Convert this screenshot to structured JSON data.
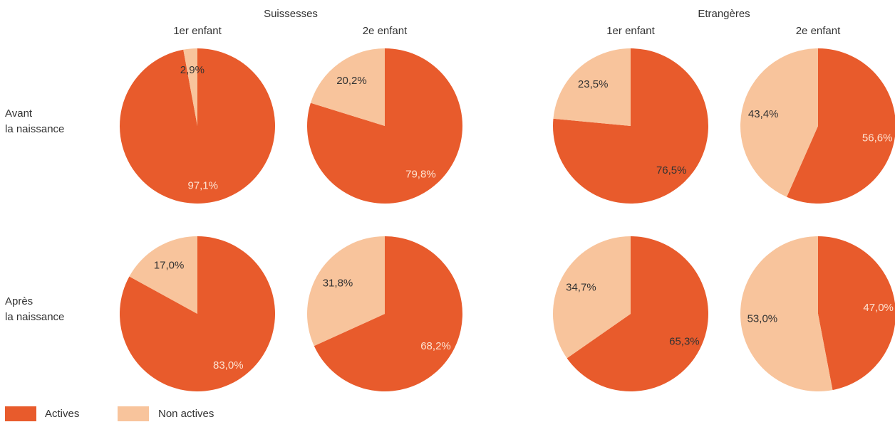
{
  "groups": [
    "Suissesses",
    "Etrangères"
  ],
  "columns": [
    "1er enfant",
    "2e enfant"
  ],
  "rows": [
    [
      "Avant",
      "la naissance"
    ],
    [
      "Après",
      "la naissance"
    ]
  ],
  "chart_data": [
    {
      "type": "pie",
      "categories": [
        "Actives",
        "Non actives"
      ],
      "colors": [
        "#e85b2c",
        "#f8c49c"
      ],
      "values": [
        97.1,
        2.9
      ],
      "value_labels": [
        "97,1%",
        "2,9%"
      ]
    },
    {
      "type": "pie",
      "categories": [
        "Actives",
        "Non actives"
      ],
      "colors": [
        "#e85b2c",
        "#f8c49c"
      ],
      "values": [
        79.8,
        20.2
      ],
      "value_labels": [
        "79,8%",
        "20,2%"
      ]
    },
    {
      "type": "pie",
      "categories": [
        "Actives",
        "Non actives"
      ],
      "colors": [
        "#e85b2c",
        "#f8c49c"
      ],
      "values": [
        76.5,
        23.5
      ],
      "value_labels": [
        "76,5%",
        "23,5%"
      ]
    },
    {
      "type": "pie",
      "categories": [
        "Actives",
        "Non actives"
      ],
      "colors": [
        "#e85b2c",
        "#f8c49c"
      ],
      "values": [
        56.6,
        43.4
      ],
      "value_labels": [
        "56,6%",
        "43,4%"
      ]
    },
    {
      "type": "pie",
      "categories": [
        "Actives",
        "Non actives"
      ],
      "colors": [
        "#e85b2c",
        "#f8c49c"
      ],
      "values": [
        83.0,
        17.0
      ],
      "value_labels": [
        "83,0%",
        "17,0%"
      ]
    },
    {
      "type": "pie",
      "categories": [
        "Actives",
        "Non actives"
      ],
      "colors": [
        "#e85b2c",
        "#f8c49c"
      ],
      "values": [
        68.2,
        31.8
      ],
      "value_labels": [
        "68,2%",
        "31,8%"
      ]
    },
    {
      "type": "pie",
      "categories": [
        "Actives",
        "Non actives"
      ],
      "colors": [
        "#e85b2c",
        "#f8c49c"
      ],
      "values": [
        65.3,
        34.7
      ],
      "value_labels": [
        "65,3%",
        "34,7%"
      ]
    },
    {
      "type": "pie",
      "categories": [
        "Actives",
        "Non actives"
      ],
      "colors": [
        "#e85b2c",
        "#f8c49c"
      ],
      "values": [
        47.0,
        53.0
      ],
      "value_labels": [
        "47,0%",
        "53,0%"
      ]
    }
  ]
}
